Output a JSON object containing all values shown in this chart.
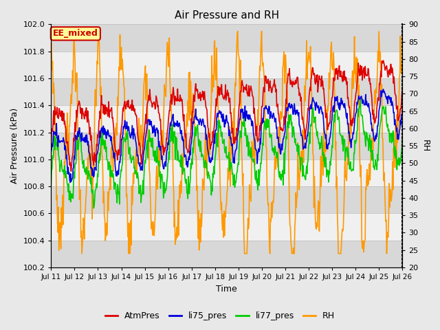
{
  "title": "Air Pressure and RH",
  "xlabel": "Time",
  "ylabel_left": "Air Pressure (kPa)",
  "ylabel_right": "RH",
  "ylim_left": [
    100.2,
    102.0
  ],
  "ylim_right": [
    20,
    90
  ],
  "yticks_left": [
    100.2,
    100.4,
    100.6,
    100.8,
    101.0,
    101.2,
    101.4,
    101.6,
    101.8,
    102.0
  ],
  "yticks_right": [
    20,
    25,
    30,
    35,
    40,
    45,
    50,
    55,
    60,
    65,
    70,
    75,
    80,
    85,
    90
  ],
  "xtick_labels": [
    "Jul 11",
    "Jul 12",
    "Jul 13",
    "Jul 14",
    "Jul 15",
    "Jul 16",
    "Jul 17",
    "Jul 18",
    "Jul 19",
    "Jul 20",
    "Jul 21",
    "Jul 22",
    "Jul 23",
    "Jul 24",
    "Jul 25",
    "Jul 26"
  ],
  "line_colors": {
    "AtmPres": "#dd0000",
    "li75_pres": "#0000dd",
    "li77_pres": "#00cc00",
    "RH": "#ff9900"
  },
  "line_width": 1.2,
  "background_color": "#e8e8e8",
  "plot_bg_color": "#ffffff",
  "band_colors": [
    "#d8d8d8",
    "#f0f0f0"
  ],
  "annotation_text": "EE_mixed",
  "annotation_fg": "#cc0000",
  "annotation_bg": "#ffff99",
  "num_days": 15,
  "points_per_day": 48
}
